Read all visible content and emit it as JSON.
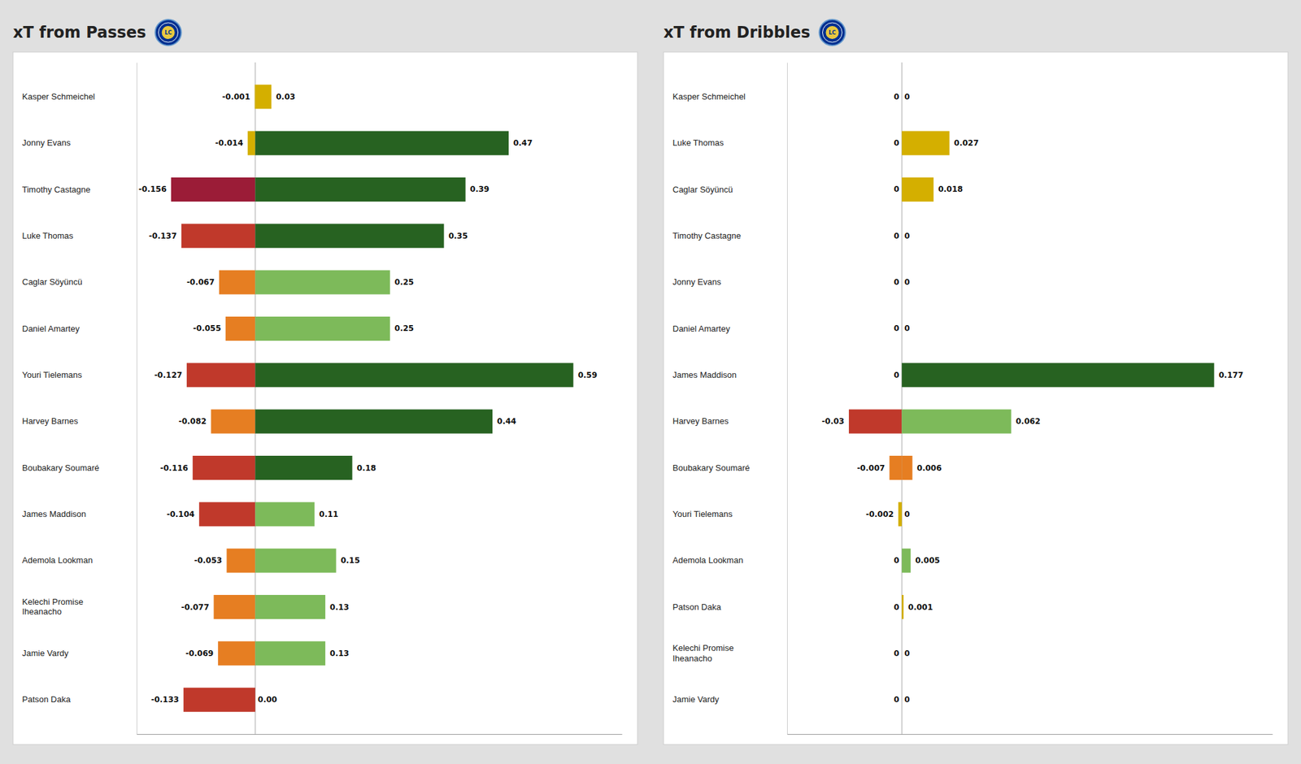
{
  "chart_data": [
    {
      "type": "bar",
      "orientation": "horizontal",
      "stacked": true,
      "data_labels": true,
      "tick_labels": "y",
      "title": "xT from Passes",
      "annotations": [
        "LC"
      ],
      "categories": [
        "Kasper Schmeichel",
        "Jonny Evans",
        "Timothy Castagne",
        "Luke Thomas",
        "Caglar Söyüncü",
        "Daniel Amartey",
        "Youri Tielemans",
        "Harvey Barnes",
        "Boubakary Soumaré",
        "James Maddison",
        "Ademola Lookman",
        "Kelechi Promise\nIheanacho",
        "Jamie Vardy",
        "Patson Daka"
      ],
      "xlim": [
        -0.22,
        0.68
      ],
      "series": [
        {
          "values": [
            -0.001,
            -0.014,
            -0.156,
            -0.137,
            -0.067,
            -0.055,
            -0.127,
            -0.082,
            -0.116,
            -0.104,
            -0.053,
            -0.077,
            -0.069,
            -0.133
          ],
          "value_labels": [
            "-0.001",
            "-0.014",
            "-0.156",
            "-0.137",
            "-0.067",
            "-0.055",
            "-0.127",
            "-0.082",
            "-0.116",
            "-0.104",
            "-0.053",
            "-0.077",
            "-0.069",
            "-0.133"
          ],
          "colors": [
            "#d4af00",
            "#d4af00",
            "#9b1c37",
            "#c0392b",
            "#e67e22",
            "#e67e22",
            "#c0392b",
            "#e67e22",
            "#c0392b",
            "#c0392b",
            "#e67e22",
            "#e67e22",
            "#e67e22",
            "#c0392b"
          ]
        },
        {
          "values": [
            0.03,
            0.47,
            0.39,
            0.35,
            0.25,
            0.25,
            0.59,
            0.44,
            0.18,
            0.11,
            0.15,
            0.13,
            0.13,
            0.0
          ],
          "value_labels": [
            "0.03",
            "0.47",
            "0.39",
            "0.35",
            "0.25",
            "0.25",
            "0.59",
            "0.44",
            "0.18",
            "0.11",
            "0.15",
            "0.13",
            "0.13",
            "0.00"
          ],
          "colors": [
            "#d4af00",
            "#276221",
            "#276221",
            "#276221",
            "#7dba5a",
            "#7dba5a",
            "#276221",
            "#276221",
            "#276221",
            "#7dba5a",
            "#7dba5a",
            "#7dba5a",
            "#7dba5a",
            "#276221"
          ]
        }
      ]
    },
    {
      "type": "bar",
      "orientation": "horizontal",
      "stacked": true,
      "data_labels": true,
      "tick_labels": "y",
      "title": "xT from Dribbles",
      "annotations": [
        "LC"
      ],
      "categories": [
        "Kasper Schmeichel",
        "Luke Thomas",
        "Caglar Söyüncü",
        "Timothy Castagne",
        "Jonny Evans",
        "Daniel Amartey",
        "James Maddison",
        "Harvey Barnes",
        "Boubakary Soumaré",
        "Youri Tielemans",
        "Ademola Lookman",
        "Patson Daka",
        "Kelechi Promise\nIheanacho",
        "Jamie Vardy"
      ],
      "xlim": [
        -0.065,
        0.21
      ],
      "series": [
        {
          "values": [
            0.0,
            0.0,
            0.0,
            0.0,
            0.0,
            0.0,
            0.0,
            -0.03,
            -0.007,
            -0.002,
            0.0,
            0.0,
            0.0,
            0.0
          ],
          "value_labels": [
            "0",
            "0",
            "0",
            "0",
            "0",
            "0",
            "0",
            "-0.03",
            "-0.007",
            "-0.002",
            "0",
            "0",
            "0",
            "0"
          ],
          "colors": [
            "#d4af00",
            "#d4af00",
            "#d4af00",
            "#d4af00",
            "#d4af00",
            "#d4af00",
            "#d4af00",
            "#c0392b",
            "#e67e22",
            "#d4af00",
            "#d4af00",
            "#d4af00",
            "#d4af00",
            "#d4af00"
          ]
        },
        {
          "values": [
            0.0,
            0.027,
            0.018,
            0.0,
            0.0,
            0.0,
            0.177,
            0.062,
            0.006,
            0.0,
            0.005,
            0.001,
            0.0,
            0.0
          ],
          "value_labels": [
            "0",
            "0.027",
            "0.018",
            "0",
            "0",
            "0",
            "0.177",
            "0.062",
            "0.006",
            "0",
            "0.005",
            "0.001",
            "0",
            "0"
          ],
          "colors": [
            "#d4af00",
            "#d4af00",
            "#d4af00",
            "#d4af00",
            "#d4af00",
            "#d4af00",
            "#276221",
            "#7dba5a",
            "#e67e22",
            "#d4af00",
            "#7dba5a",
            "#d4af00",
            "#d4af00",
            "#d4af00"
          ]
        }
      ]
    }
  ]
}
